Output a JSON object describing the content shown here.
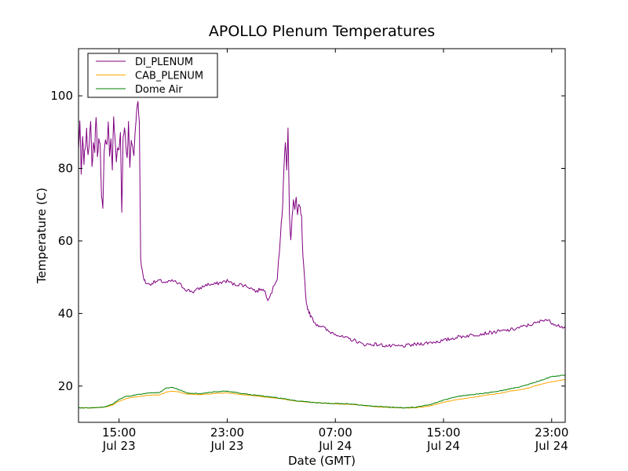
{
  "chart_data": {
    "type": "line",
    "title": "APOLLO Plenum Temperatures",
    "xlabel": "Date (GMT)",
    "ylabel": "Temperature (C)",
    "x_unit": "hours from Jul 23 12:00 GMT",
    "xlim": [
      0,
      36
    ],
    "ylim": [
      10,
      113
    ],
    "yticks": [
      20,
      40,
      60,
      80,
      100
    ],
    "xticks": [
      {
        "x": 3,
        "line1": "15:00",
        "line2": "Jul 23"
      },
      {
        "x": 11,
        "line1": "23:00",
        "line2": "Jul 23"
      },
      {
        "x": 19,
        "line1": "07:00",
        "line2": "Jul 24"
      },
      {
        "x": 27,
        "line1": "15:00",
        "line2": "Jul 24"
      },
      {
        "x": 35,
        "line1": "23:00",
        "line2": "Jul 24"
      }
    ],
    "grid": false,
    "legend_position": "top-left",
    "series": [
      {
        "name": "DI_PLENUM",
        "color": "#800080",
        "noise": 1.0,
        "x": [
          0,
          0.1,
          0.2,
          0.3,
          0.4,
          0.5,
          0.6,
          0.7,
          0.8,
          0.9,
          1.0,
          1.1,
          1.2,
          1.3,
          1.4,
          1.5,
          1.6,
          1.7,
          1.8,
          1.9,
          2.0,
          2.1,
          2.2,
          2.3,
          2.4,
          2.5,
          2.6,
          2.7,
          2.8,
          2.9,
          3.0,
          3.1,
          3.2,
          3.3,
          3.4,
          3.5,
          3.6,
          3.7,
          3.8,
          3.9,
          4.0,
          4.1,
          4.2,
          4.3,
          4.4,
          4.5,
          4.6,
          4.7,
          4.8,
          4.9,
          5.0,
          5.2,
          5.5,
          6.0,
          6.5,
          7.0,
          7.5,
          8.0,
          8.5,
          9.0,
          9.5,
          10.0,
          10.5,
          11.0,
          11.5,
          12.0,
          12.5,
          13.0,
          13.2,
          13.5,
          13.8,
          14.0,
          14.3,
          14.5,
          14.7,
          14.8,
          14.9,
          15.0,
          15.1,
          15.2,
          15.3,
          15.4,
          15.5,
          15.6,
          15.7,
          15.8,
          15.9,
          16.0,
          16.1,
          16.2,
          16.3,
          16.4,
          16.5,
          16.6,
          16.7,
          16.8,
          16.9,
          17.0,
          17.1,
          17.2,
          17.4,
          17.6,
          18.0,
          18.5,
          19.0,
          19.5,
          20.0,
          20.5,
          21.0,
          22.0,
          23.0,
          24.0,
          25.0,
          26.0,
          27.0,
          28.0,
          29.0,
          30.0,
          31.0,
          32.0,
          33.0,
          34.0,
          34.5,
          35.0,
          36.0
        ],
        "y": [
          85,
          93,
          78,
          88,
          82,
          86,
          90,
          84,
          88,
          92,
          80,
          87,
          85,
          95,
          84,
          88,
          86,
          72,
          70,
          85,
          88,
          86,
          92,
          84,
          88,
          80,
          94,
          88,
          82,
          86,
          85,
          90,
          68,
          88,
          92,
          86,
          82,
          93,
          80,
          88,
          86,
          84,
          90,
          96,
          99,
          92,
          55,
          52,
          50,
          49,
          48.5,
          48,
          48.5,
          49,
          48.5,
          49,
          48,
          46.5,
          46,
          47,
          48,
          48,
          48.5,
          49,
          48,
          48,
          47.5,
          46.5,
          46,
          47,
          46,
          44,
          46,
          48,
          50,
          55,
          58,
          65,
          70,
          80,
          88,
          79,
          92,
          68,
          60,
          66,
          71,
          69,
          72,
          67,
          70,
          69,
          66,
          55,
          50,
          45,
          42,
          41,
          40,
          39,
          38,
          37,
          36.5,
          35,
          34.5,
          33.5,
          33,
          32.5,
          31.5,
          31.5,
          31,
          31,
          31.5,
          32,
          32.5,
          33.5,
          34,
          34.5,
          35,
          35.5,
          36.5,
          37.5,
          38.5,
          37.5,
          36
        ]
      },
      {
        "name": "CAB_PLENUM",
        "color": "#ffa500",
        "noise": 0.15,
        "x": [
          0,
          1,
          2,
          2.5,
          3,
          3.5,
          4,
          5,
          6,
          6.5,
          7,
          7.5,
          8,
          9,
          10,
          11,
          12,
          13,
          14,
          15,
          16,
          17,
          18,
          19,
          20,
          21,
          22,
          23,
          24,
          25,
          26,
          27,
          28,
          29,
          30,
          31,
          32,
          33,
          34,
          35,
          36
        ],
        "y": [
          14,
          14,
          14.2,
          14.7,
          15.8,
          16.5,
          16.9,
          17.4,
          17.6,
          18.3,
          18.6,
          18.3,
          17.8,
          17.6,
          17.9,
          18.1,
          17.7,
          17.3,
          16.9,
          16.5,
          15.9,
          15.6,
          15.3,
          15.1,
          15.0,
          14.7,
          14.3,
          14.1,
          14.0,
          14.0,
          14.5,
          15.5,
          16.3,
          16.8,
          17.4,
          17.9,
          18.6,
          19.2,
          20.3,
          21.2,
          21.8
        ]
      },
      {
        "name": "Dome Air",
        "color": "#008000",
        "noise": 0.2,
        "x": [
          0,
          1,
          2,
          2.5,
          3,
          3.5,
          4,
          5,
          6,
          6.5,
          7,
          7.5,
          8,
          9,
          10,
          11,
          12,
          13,
          14,
          15,
          16,
          17,
          18,
          19,
          20,
          21,
          22,
          23,
          24,
          25,
          26,
          27,
          28,
          29,
          30,
          31,
          32,
          33,
          34,
          35,
          36
        ],
        "y": [
          14,
          14,
          14.3,
          15,
          16.3,
          17.1,
          17.4,
          18.0,
          18.2,
          19.5,
          19.6,
          18.9,
          18.1,
          17.9,
          18.4,
          18.6,
          18.0,
          17.5,
          17.1,
          16.6,
          16.0,
          15.6,
          15.3,
          15.2,
          15.1,
          14.7,
          14.4,
          14.2,
          14.0,
          14.2,
          14.9,
          16.1,
          17.1,
          17.6,
          18.0,
          18.5,
          19.3,
          20.1,
          21.3,
          22.6,
          23.0
        ]
      }
    ]
  }
}
